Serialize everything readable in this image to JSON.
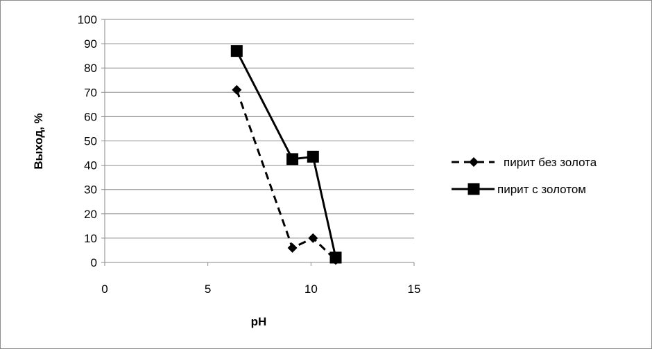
{
  "chart_data": {
    "type": "scatter",
    "title": "",
    "xlabel": "pH",
    "ylabel": "Выход, %",
    "xlim": [
      0,
      15
    ],
    "ylim": [
      0,
      100
    ],
    "xticks": [
      0,
      5,
      10,
      15
    ],
    "yticks": [
      0,
      10,
      20,
      30,
      40,
      50,
      60,
      70,
      80,
      90,
      100
    ],
    "grid": "horizontal",
    "legend_position": "right",
    "series": [
      {
        "name": "пирит без золота",
        "marker": "diamond",
        "line": "dashed",
        "color": "#000000",
        "x": [
          6.4,
          9.1,
          10.1,
          11.2
        ],
        "y": [
          71,
          6,
          10,
          1
        ]
      },
      {
        "name": "пирит с золотом",
        "marker": "square",
        "line": "solid",
        "color": "#000000",
        "x": [
          6.4,
          9.1,
          10.1,
          11.2
        ],
        "y": [
          87,
          42.5,
          43.5,
          2
        ]
      }
    ]
  }
}
